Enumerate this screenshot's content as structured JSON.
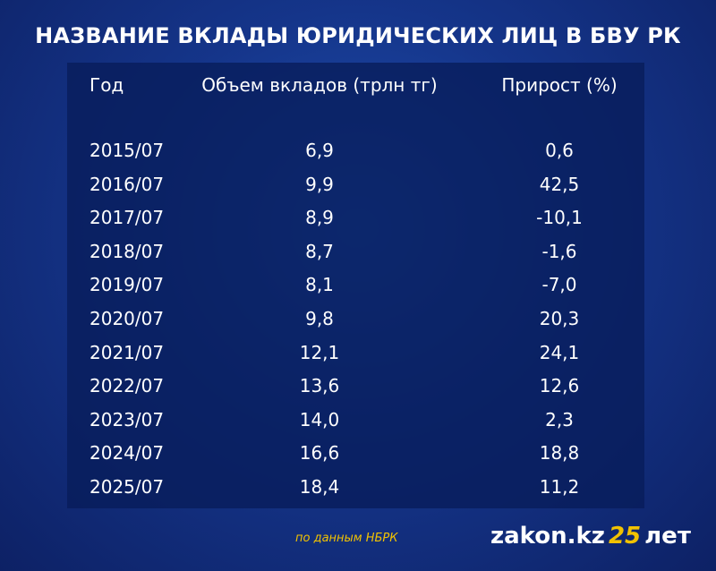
{
  "header": {
    "title": "НАЗВАНИЕ ВКЛАДЫ ЮРИДИЧЕСКИХ ЛИЦ В БВУ РК"
  },
  "table": {
    "columns": [
      "Год",
      "Объем вкладов (трлн тг)",
      "Прирост (%)"
    ],
    "rows": [
      [
        "2015/07",
        "6,9",
        "0,6"
      ],
      [
        "2016/07",
        "9,9",
        "42,5"
      ],
      [
        "2017/07",
        "8,9",
        "-10,1"
      ],
      [
        "2018/07",
        "8,7",
        "-1,6"
      ],
      [
        "2019/07",
        "8,1",
        "-7,0"
      ],
      [
        "2020/07",
        "9,8",
        "20,3"
      ],
      [
        "2021/07",
        "12,1",
        "24,1"
      ],
      [
        "2022/07",
        "13,6",
        "12,6"
      ],
      [
        "2023/07",
        "14,0",
        "2,3"
      ],
      [
        "2024/07",
        "16,6",
        "18,8"
      ],
      [
        "2025/07",
        "18,4",
        "11,2"
      ]
    ]
  },
  "footer": {
    "source": "по данным НБРК",
    "logo": {
      "site": "zakon.kz",
      "number": "25",
      "suffix": "лет"
    }
  }
}
